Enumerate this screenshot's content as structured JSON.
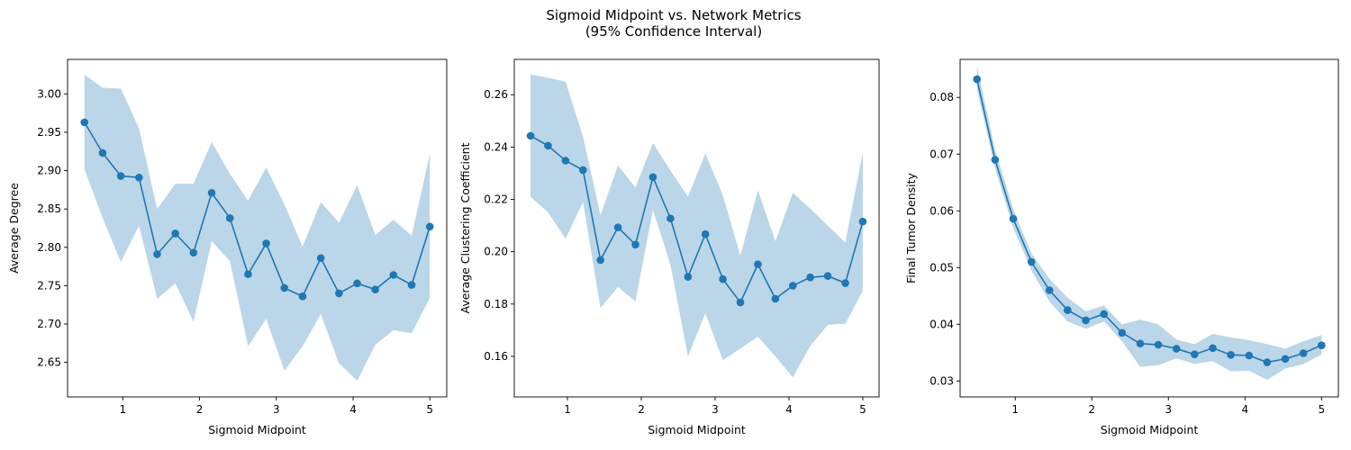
{
  "figure": {
    "title_line1": "Sigmoid Midpoint vs. Network Metrics",
    "title_line2": "(95% Confidence Interval)"
  },
  "colors": {
    "line": "#1f77b4",
    "band": "#1f77b4",
    "axes": "#000000",
    "background": "#ffffff"
  },
  "chart_data": [
    {
      "type": "line",
      "name": "average-degree",
      "xlabel": "Sigmoid Midpoint",
      "ylabel": "Average Degree",
      "xlim": [
        0.28,
        5.22
      ],
      "ylim": [
        2.605,
        3.045
      ],
      "xticks": [
        1,
        2,
        3,
        4,
        5
      ],
      "xtick_labels": [
        "1",
        "2",
        "3",
        "4",
        "5"
      ],
      "yticks": [
        2.65,
        2.7,
        2.75,
        2.8,
        2.85,
        2.9,
        2.95,
        3.0
      ],
      "ytick_labels": [
        "2.65",
        "2.70",
        "2.75",
        "2.80",
        "2.85",
        "2.90",
        "2.95",
        "3.00"
      ],
      "grid": false,
      "x": [
        0.5,
        0.737,
        0.974,
        1.211,
        1.447,
        1.684,
        1.921,
        2.158,
        2.395,
        2.632,
        2.868,
        3.105,
        3.342,
        3.579,
        3.816,
        4.053,
        4.289,
        4.526,
        4.763,
        5.0
      ],
      "y": [
        2.963,
        2.923,
        2.893,
        2.891,
        2.791,
        2.818,
        2.793,
        2.871,
        2.838,
        2.765,
        2.805,
        2.747,
        2.736,
        2.786,
        2.74,
        2.753,
        2.745,
        2.764,
        2.751,
        2.827
      ],
      "ci_lower": [
        2.902,
        2.838,
        2.781,
        2.828,
        2.733,
        2.753,
        2.703,
        2.808,
        2.782,
        2.671,
        2.707,
        2.639,
        2.671,
        2.713,
        2.649,
        2.626,
        2.673,
        2.692,
        2.688,
        2.734
      ],
      "ci_upper": [
        3.025,
        3.008,
        3.007,
        2.955,
        2.85,
        2.883,
        2.883,
        2.937,
        2.896,
        2.861,
        2.904,
        2.856,
        2.801,
        2.859,
        2.832,
        2.881,
        2.816,
        2.836,
        2.815,
        2.922
      ]
    },
    {
      "type": "line",
      "name": "average-clustering-coefficient",
      "xlabel": "Sigmoid Midpoint",
      "ylabel": "Average Clustering Coefficient",
      "xlim": [
        0.28,
        5.22
      ],
      "ylim": [
        0.1445,
        0.2735
      ],
      "xticks": [
        1,
        2,
        3,
        4,
        5
      ],
      "xtick_labels": [
        "1",
        "2",
        "3",
        "4",
        "5"
      ],
      "yticks": [
        0.16,
        0.18,
        0.2,
        0.22,
        0.24,
        0.26
      ],
      "ytick_labels": [
        "0.16",
        "0.18",
        "0.20",
        "0.22",
        "0.24",
        "0.26"
      ],
      "grid": false,
      "x": [
        0.5,
        0.737,
        0.974,
        1.211,
        1.447,
        1.684,
        1.921,
        2.158,
        2.395,
        2.632,
        2.868,
        3.105,
        3.342,
        3.579,
        3.816,
        4.053,
        4.289,
        4.526,
        4.763,
        5.0
      ],
      "y": [
        0.2443,
        0.2405,
        0.2348,
        0.2312,
        0.1968,
        0.2093,
        0.2027,
        0.2285,
        0.2127,
        0.1904,
        0.2067,
        0.1895,
        0.1806,
        0.1952,
        0.182,
        0.187,
        0.1902,
        0.1907,
        0.188,
        0.2115
      ],
      "ci_lower": [
        0.221,
        0.215,
        0.205,
        0.219,
        0.1785,
        0.1865,
        0.181,
        0.216,
        0.195,
        0.16,
        0.1765,
        0.1585,
        0.163,
        0.1675,
        0.16,
        0.152,
        0.164,
        0.172,
        0.1725,
        0.185
      ],
      "ci_upper": [
        0.2678,
        0.2665,
        0.265,
        0.244,
        0.214,
        0.233,
        0.2245,
        0.2415,
        0.231,
        0.221,
        0.2375,
        0.2215,
        0.1985,
        0.2235,
        0.204,
        0.2225,
        0.2165,
        0.21,
        0.2035,
        0.238
      ]
    },
    {
      "type": "line",
      "name": "final-tumor-density",
      "xlabel": "Sigmoid Midpoint",
      "ylabel": "Final Tumor Density",
      "xlim": [
        0.28,
        5.22
      ],
      "ylim": [
        0.0272,
        0.0867
      ],
      "xticks": [
        1,
        2,
        3,
        4,
        5
      ],
      "xtick_labels": [
        "1",
        "2",
        "3",
        "4",
        "5"
      ],
      "yticks": [
        0.03,
        0.04,
        0.05,
        0.06,
        0.07,
        0.08
      ],
      "ytick_labels": [
        "0.03",
        "0.04",
        "0.05",
        "0.06",
        "0.07",
        "0.08"
      ],
      "grid": false,
      "x": [
        0.5,
        0.737,
        0.974,
        1.211,
        1.447,
        1.684,
        1.921,
        2.158,
        2.395,
        2.632,
        2.868,
        3.105,
        3.342,
        3.579,
        3.816,
        4.053,
        4.289,
        4.526,
        4.763,
        5.0
      ],
      "y": [
        0.0832,
        0.069,
        0.0586,
        0.051,
        0.046,
        0.0425,
        0.0407,
        0.0418,
        0.0385,
        0.0366,
        0.0364,
        0.0357,
        0.0347,
        0.0358,
        0.0346,
        0.0345,
        0.0333,
        0.0339,
        0.0349,
        0.0363
      ],
      "ci_lower": [
        0.0815,
        0.0675,
        0.057,
        0.0495,
        0.044,
        0.0405,
        0.0392,
        0.0405,
        0.037,
        0.0325,
        0.0328,
        0.034,
        0.033,
        0.0335,
        0.0317,
        0.0318,
        0.0302,
        0.0322,
        0.033,
        0.0347
      ],
      "ci_upper": [
        0.0855,
        0.0708,
        0.0603,
        0.0525,
        0.048,
        0.0447,
        0.0423,
        0.0433,
        0.04,
        0.0408,
        0.04,
        0.0373,
        0.0365,
        0.0383,
        0.0377,
        0.0372,
        0.0365,
        0.0357,
        0.037,
        0.0381
      ]
    }
  ]
}
